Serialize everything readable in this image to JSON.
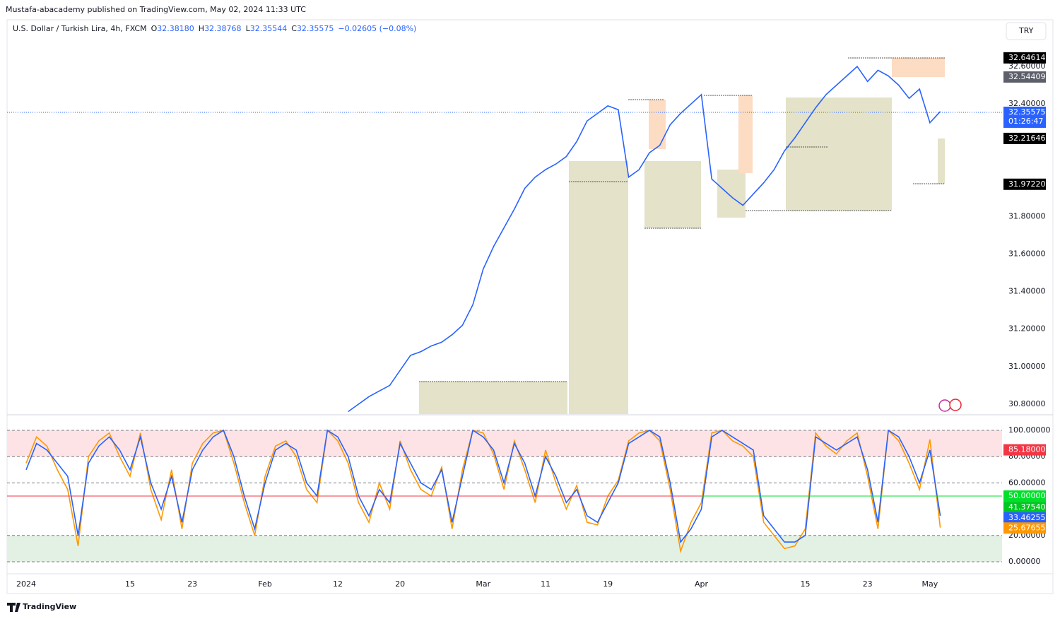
{
  "header": {
    "publisher": "Mustafa-abacademy published on TradingView.com, May 02, 2024 11:33 UTC"
  },
  "symbol": {
    "name": "U.S. Dollar / Turkish Lira, 4h, FXCM",
    "ohlc": [
      {
        "key": "O",
        "value": "32.38180"
      },
      {
        "key": "H",
        "value": "32.38768"
      },
      {
        "key": "L",
        "value": "32.35544"
      },
      {
        "key": "C",
        "value": "32.35575"
      }
    ],
    "change": "−0.02605 (−0.08%)"
  },
  "currency_button": "TRY",
  "footer": "TradingView",
  "chart_data": [
    {
      "type": "line",
      "color": "#2962ff",
      "x": [
        "2024-02-13",
        "2024-02-14",
        "2024-02-15",
        "2024-02-16",
        "2024-02-19",
        "2024-02-20",
        "2024-02-21",
        "2024-02-22",
        "2024-02-23",
        "2024-02-26",
        "2024-02-27",
        "2024-02-28",
        "2024-02-29",
        "2024-03-01",
        "2024-03-04",
        "2024-03-05",
        "2024-03-06",
        "2024-03-07",
        "2024-03-08",
        "2024-03-11",
        "2024-03-12",
        "2024-03-13",
        "2024-03-14",
        "2024-03-15",
        "2024-03-18",
        "2024-03-19",
        "2024-03-20",
        "2024-03-21",
        "2024-03-22",
        "2024-03-25",
        "2024-03-26",
        "2024-03-27",
        "2024-03-28",
        "2024-03-29",
        "2024-04-01",
        "2024-04-02",
        "2024-04-03",
        "2024-04-04",
        "2024-04-05",
        "2024-04-08",
        "2024-04-09",
        "2024-04-10",
        "2024-04-11",
        "2024-04-12",
        "2024-04-15",
        "2024-04-16",
        "2024-04-17",
        "2024-04-18",
        "2024-04-19",
        "2024-04-22",
        "2024-04-23",
        "2024-04-24",
        "2024-04-25",
        "2024-04-26",
        "2024-04-29",
        "2024-04-30",
        "2024-05-01",
        "2024-05-02"
      ],
      "values": [
        30.76,
        30.8,
        30.84,
        30.87,
        30.9,
        30.98,
        31.06,
        31.08,
        31.11,
        31.13,
        31.17,
        31.22,
        31.33,
        31.52,
        31.64,
        31.74,
        31.84,
        31.95,
        32.01,
        32.05,
        32.08,
        32.12,
        32.2,
        32.31,
        32.35,
        32.39,
        32.37,
        32.01,
        32.05,
        32.14,
        32.18,
        32.29,
        32.35,
        32.4,
        32.45,
        32.0,
        31.95,
        31.9,
        31.86,
        31.92,
        31.98,
        32.05,
        32.15,
        32.22,
        32.3,
        32.38,
        32.45,
        32.5,
        32.55,
        32.6,
        32.52,
        32.58,
        32.55,
        32.5,
        32.43,
        32.48,
        32.3,
        32.36
      ],
      "ylim": [
        30.747,
        32.849
      ],
      "yticks": [
        {
          "value": 30.8,
          "label": "30.80000"
        },
        {
          "value": 31,
          "label": "31.00000"
        },
        {
          "value": 31.2,
          "label": "31.20000"
        },
        {
          "value": 31.4,
          "label": "31.40000"
        },
        {
          "value": 31.6,
          "label": "31.60000"
        },
        {
          "value": 31.8,
          "label": "31.80000"
        },
        {
          "value": 32.4,
          "label": "32.40000"
        },
        {
          "value": 32.6,
          "label": "32.60000"
        }
      ],
      "price_labels": [
        {
          "value": 32.64614,
          "label": "32.64614",
          "color": "#000000"
        },
        {
          "value": 32.54409,
          "label": "32.54409",
          "color": "#5d606b"
        },
        {
          "value": 32.35575,
          "label": "32.35575",
          "color": "#2962ff"
        },
        {
          "value": 32.21646,
          "label": "32.21646",
          "color": "#000000"
        },
        {
          "value": 31.9722,
          "label": "31.97220",
          "color": "#000000"
        }
      ],
      "countdown": "01:26:47"
    },
    {
      "type": "line",
      "x": [
        "2024-01-01",
        "2024-01-02",
        "2024-01-03",
        "2024-01-04",
        "2024-01-05",
        "2024-01-08",
        "2024-01-09",
        "2024-01-10",
        "2024-01-11",
        "2024-01-12",
        "2024-01-15",
        "2024-01-16",
        "2024-01-17",
        "2024-01-18",
        "2024-01-19",
        "2024-01-22",
        "2024-01-23",
        "2024-01-24",
        "2024-01-25",
        "2024-01-26",
        "2024-01-29",
        "2024-01-30",
        "2024-01-31",
        "2024-02-01",
        "2024-02-02",
        "2024-02-05",
        "2024-02-06",
        "2024-02-07",
        "2024-02-08",
        "2024-02-09",
        "2024-02-12",
        "2024-02-13",
        "2024-02-14",
        "2024-02-15",
        "2024-02-16",
        "2024-02-19",
        "2024-02-20",
        "2024-02-21",
        "2024-02-22",
        "2024-02-23",
        "2024-02-26",
        "2024-02-27",
        "2024-02-28",
        "2024-02-29",
        "2024-03-01",
        "2024-03-04",
        "2024-03-05",
        "2024-03-06",
        "2024-03-07",
        "2024-03-08",
        "2024-03-11",
        "2024-03-12",
        "2024-03-13",
        "2024-03-14",
        "2024-03-15",
        "2024-03-18",
        "2024-03-19",
        "2024-03-20",
        "2024-03-21",
        "2024-03-22",
        "2024-03-25",
        "2024-03-26",
        "2024-03-27",
        "2024-03-28",
        "2024-03-29",
        "2024-04-01",
        "2024-04-02",
        "2024-04-03",
        "2024-04-04",
        "2024-04-05",
        "2024-04-08",
        "2024-04-09",
        "2024-04-10",
        "2024-04-11",
        "2024-04-12",
        "2024-04-15",
        "2024-04-16",
        "2024-04-17",
        "2024-04-18",
        "2024-04-19",
        "2024-04-22",
        "2024-04-23",
        "2024-04-24",
        "2024-04-25",
        "2024-04-26",
        "2024-04-29",
        "2024-04-30",
        "2024-05-01",
        "2024-05-02"
      ],
      "series": [
        {
          "color": "#ff9800",
          "values": [
            75,
            95,
            88,
            70,
            55,
            12,
            80,
            92,
            98,
            80,
            65,
            98,
            55,
            32,
            70,
            25,
            75,
            90,
            98,
            100,
            75,
            45,
            20,
            65,
            88,
            92,
            80,
            55,
            45,
            100,
            92,
            75,
            45,
            30,
            60,
            40,
            92,
            70,
            55,
            50,
            72,
            25,
            70,
            100,
            98,
            82,
            55,
            92,
            70,
            45,
            85,
            60,
            40,
            58,
            30,
            28,
            50,
            62,
            92,
            98,
            100,
            92,
            55,
            8,
            30,
            45,
            98,
            100,
            92,
            88,
            80,
            30,
            20,
            10,
            12,
            25,
            98,
            88,
            82,
            92,
            98,
            65,
            25,
            100,
            92,
            75,
            55,
            93,
            26
          ]
        },
        {
          "color": "#2962ff",
          "values": [
            70,
            90,
            85,
            75,
            65,
            20,
            75,
            88,
            95,
            85,
            70,
            95,
            60,
            40,
            65,
            30,
            70,
            85,
            95,
            100,
            80,
            50,
            25,
            60,
            85,
            90,
            85,
            60,
            50,
            100,
            95,
            80,
            50,
            35,
            55,
            45,
            90,
            75,
            60,
            55,
            70,
            30,
            65,
            100,
            95,
            85,
            60,
            90,
            75,
            50,
            80,
            65,
            45,
            55,
            35,
            30,
            45,
            60,
            90,
            95,
            100,
            95,
            60,
            15,
            25,
            40,
            95,
            100,
            95,
            90,
            85,
            35,
            25,
            15,
            15,
            20,
            95,
            90,
            85,
            90,
            95,
            70,
            30,
            100,
            95,
            80,
            60,
            85,
            35
          ]
        }
      ],
      "ylim": [
        -8.06,
        111.3
      ],
      "yticks": [
        {
          "value": 0,
          "label": "0.00000"
        },
        {
          "value": 20,
          "label": "20.00000"
        },
        {
          "value": 60,
          "label": "60.00000"
        },
        {
          "value": 80,
          "label": "80.00000"
        },
        {
          "value": 100,
          "label": "100.00000"
        }
      ],
      "bands": [
        {
          "from": 80,
          "to": 100,
          "color": "#fde3e5"
        },
        {
          "from": 0,
          "to": 20,
          "color": "#e3f1e4"
        }
      ],
      "value_labels": [
        {
          "value": 85.18,
          "label": "85.18000",
          "color": "#f23645"
        },
        {
          "value": 50,
          "label": "50.00000",
          "color": "#00e02a"
        },
        {
          "value": 41.3754,
          "label": "41.37540",
          "color": "#00c820"
        },
        {
          "value": 33.46255,
          "label": "33.46255",
          "color": "#2962ff"
        },
        {
          "value": 25.67655,
          "label": "25.67655",
          "color": "#ff9800"
        }
      ],
      "xticks": [
        {
          "value": "2024-01-01",
          "label": "2024"
        },
        {
          "value": "2024-01-15",
          "label": "15"
        },
        {
          "value": "2024-01-23",
          "label": "23"
        },
        {
          "value": "2024-02-01",
          "label": "Feb"
        },
        {
          "value": "2024-02-12",
          "label": "12"
        },
        {
          "value": "2024-02-20",
          "label": "20"
        },
        {
          "value": "2024-03-01",
          "label": "Mar"
        },
        {
          "value": "2024-03-11",
          "label": "11"
        },
        {
          "value": "2024-03-19",
          "label": "19"
        },
        {
          "value": "2024-04-01",
          "label": "Apr"
        },
        {
          "value": "2024-04-15",
          "label": "15"
        },
        {
          "value": "2024-04-23",
          "label": "23"
        },
        {
          "value": "2024-05-01",
          "label": "May"
        }
      ]
    }
  ]
}
